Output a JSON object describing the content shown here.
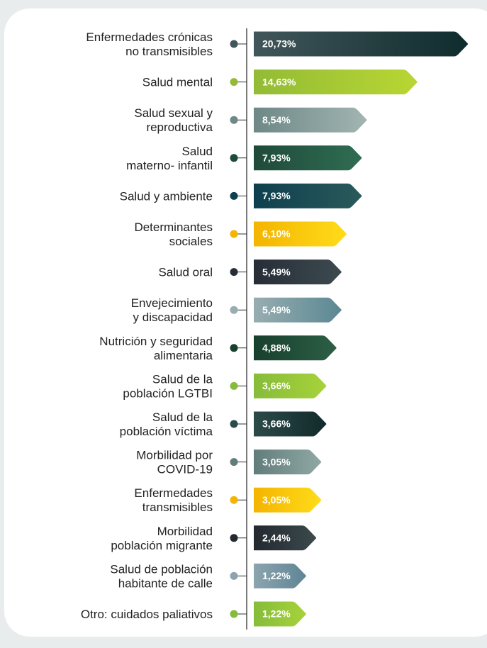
{
  "chart_data": {
    "type": "bar",
    "categories": [
      [
        "Enfermedades crónicas",
        "no transmisibles"
      ],
      [
        "Salud mental"
      ],
      [
        "Salud sexual y",
        "reproductiva"
      ],
      [
        "Salud",
        "materno- infantil"
      ],
      [
        "Salud y ambiente"
      ],
      [
        "Determinantes",
        "sociales"
      ],
      [
        "Salud oral"
      ],
      [
        "Envejecimiento",
        "y discapacidad"
      ],
      [
        "Nutrición y seguridad",
        "alimentaria"
      ],
      [
        "Salud de la",
        "población LGTBI"
      ],
      [
        "Salud de la",
        "población víctima"
      ],
      [
        "Morbilidad por",
        "COVID-19"
      ],
      [
        "Enfermedades",
        "transmisibles"
      ],
      [
        "Morbilidad",
        "población migrante"
      ],
      [
        "Salud de población",
        "habitante de calle"
      ],
      [
        "Otro: cuidados paliativos"
      ]
    ],
    "values": [
      20.73,
      14.63,
      8.54,
      7.93,
      7.93,
      6.1,
      5.49,
      5.49,
      4.88,
      3.66,
      3.66,
      3.05,
      3.05,
      2.44,
      1.22,
      1.22
    ],
    "value_labels": [
      "20,73%",
      "14,63%",
      "8,54%",
      "7,93%",
      "7,93%",
      "6,10%",
      "5,49%",
      "5,49%",
      "4,88%",
      "3,66%",
      "3,66%",
      "3,05%",
      "3,05%",
      "2,44%",
      "1,22%",
      "1,22%"
    ],
    "colors": [
      [
        "#41565a",
        "#0f2c2d"
      ],
      [
        "#93bb35",
        "#b8d633"
      ],
      [
        "#6d8886",
        "#a2b5b2"
      ],
      [
        "#1f4a3b",
        "#2f6d52"
      ],
      [
        "#0e3f4f",
        "#2a5a5a"
      ],
      [
        "#f4b400",
        "#ffdc1a"
      ],
      [
        "#262d36",
        "#3d4a50"
      ],
      [
        "#98adb0",
        "#5b8894"
      ],
      [
        "#17402d",
        "#2d5e45"
      ],
      [
        "#86bc3a",
        "#a7d23a"
      ],
      [
        "#2b4a4a",
        "#122a2b"
      ],
      [
        "#617d7b",
        "#90a8a4"
      ],
      [
        "#f4b400",
        "#ffdc1a"
      ],
      [
        "#23292f",
        "#3b4a4c"
      ],
      [
        "#8ca4ae",
        "#5f8596"
      ],
      [
        "#86bc3a",
        "#a7d23a"
      ]
    ]
  }
}
